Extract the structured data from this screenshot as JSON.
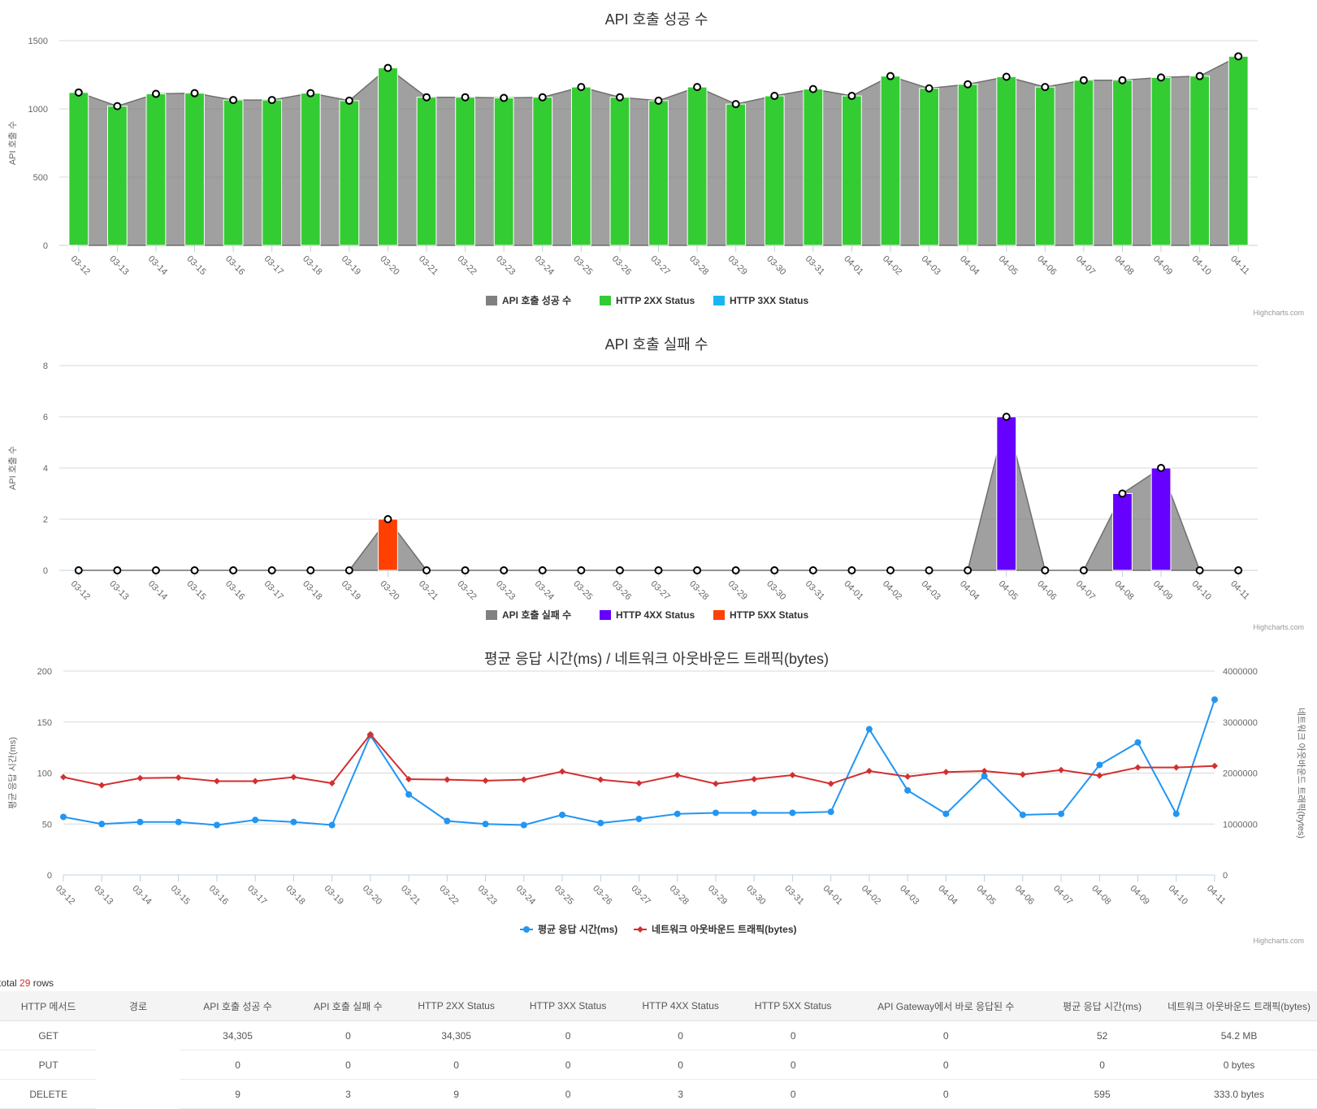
{
  "charts": [
    {
      "id": "success",
      "credit": "Highcharts.com",
      "chart_data": {
        "type": "bar",
        "title": "API 호출 성공 수",
        "ylabel": "API 호출 수",
        "ylim": [
          0,
          1500
        ],
        "yticks": [
          0,
          500,
          1000,
          1500
        ],
        "grid": true,
        "legend_position": "bottom-center",
        "categories": [
          "03-12",
          "03-13",
          "03-14",
          "03-15",
          "03-16",
          "03-17",
          "03-18",
          "03-19",
          "03-20",
          "03-21",
          "03-22",
          "03-23",
          "03-24",
          "03-25",
          "03-26",
          "03-27",
          "03-28",
          "03-29",
          "03-30",
          "03-31",
          "04-01",
          "04-02",
          "04-03",
          "04-04",
          "04-05",
          "04-06",
          "04-07",
          "04-08",
          "04-09",
          "04-10",
          "04-11"
        ],
        "series": [
          {
            "name": "API 호출 성공 수",
            "kind": "area",
            "color": "#808080",
            "values": [
              1120,
              1020,
              1110,
              1115,
              1065,
              1065,
              1115,
              1060,
              1300,
              1085,
              1085,
              1080,
              1085,
              1160,
              1085,
              1060,
              1160,
              1035,
              1095,
              1145,
              1095,
              1240,
              1150,
              1180,
              1235,
              1160,
              1210,
              1210,
              1230,
              1240,
              1385
            ]
          },
          {
            "name": "HTTP 2XX Status",
            "kind": "bar",
            "color": "#33cc33",
            "values": [
              1120,
              1020,
              1110,
              1115,
              1065,
              1065,
              1115,
              1060,
              1300,
              1085,
              1085,
              1080,
              1085,
              1160,
              1085,
              1060,
              1160,
              1035,
              1095,
              1145,
              1095,
              1240,
              1150,
              1180,
              1235,
              1160,
              1210,
              1210,
              1230,
              1240,
              1385
            ]
          },
          {
            "name": "HTTP 3XX Status",
            "kind": "bar",
            "color": "#1ab5f0",
            "values": [
              0,
              0,
              0,
              0,
              0,
              0,
              0,
              0,
              0,
              0,
              0,
              0,
              0,
              0,
              0,
              0,
              0,
              0,
              0,
              0,
              0,
              0,
              0,
              0,
              0,
              0,
              0,
              0,
              0,
              0,
              0
            ]
          }
        ]
      }
    },
    {
      "id": "failure",
      "credit": "Highcharts.com",
      "chart_data": {
        "type": "bar",
        "title": "API 호출 실패 수",
        "ylabel": "API 호출 수",
        "ylim": [
          0,
          8
        ],
        "yticks": [
          0,
          2,
          4,
          6,
          8
        ],
        "grid": true,
        "legend_position": "bottom-center",
        "categories": [
          "03-12",
          "03-13",
          "03-14",
          "03-15",
          "03-16",
          "03-17",
          "03-18",
          "03-19",
          "03-20",
          "03-21",
          "03-22",
          "03-23",
          "03-24",
          "03-25",
          "03-26",
          "03-27",
          "03-28",
          "03-29",
          "03-30",
          "03-31",
          "04-01",
          "04-02",
          "04-03",
          "04-04",
          "04-05",
          "04-06",
          "04-07",
          "04-08",
          "04-09",
          "04-10",
          "04-11"
        ],
        "series": [
          {
            "name": "API 호출 실패 수",
            "kind": "area",
            "color": "#808080",
            "values": [
              0,
              0,
              0,
              0,
              0,
              0,
              0,
              0,
              2,
              0,
              0,
              0,
              0,
              0,
              0,
              0,
              0,
              0,
              0,
              0,
              0,
              0,
              0,
              0,
              6,
              0,
              0,
              3,
              4,
              0,
              0
            ]
          },
          {
            "name": "HTTP 4XX Status",
            "kind": "bar",
            "color": "#6600ff",
            "values": [
              0,
              0,
              0,
              0,
              0,
              0,
              0,
              0,
              0,
              0,
              0,
              0,
              0,
              0,
              0,
              0,
              0,
              0,
              0,
              0,
              0,
              0,
              0,
              0,
              6,
              0,
              0,
              3,
              4,
              0,
              0
            ]
          },
          {
            "name": "HTTP 5XX Status",
            "kind": "bar",
            "color": "#ff4000",
            "values": [
              0,
              0,
              0,
              0,
              0,
              0,
              0,
              0,
              2,
              0,
              0,
              0,
              0,
              0,
              0,
              0,
              0,
              0,
              0,
              0,
              0,
              0,
              0,
              0,
              0,
              0,
              0,
              0,
              0,
              0,
              0
            ]
          }
        ]
      }
    },
    {
      "id": "latency",
      "credit": "Highcharts.com",
      "chart_data": {
        "type": "line",
        "title": "평균 응답 시간(ms) / 네트워크 아웃바운드 트래픽(bytes)",
        "ylabel": "평균 응답 시간(ms)",
        "ylim": [
          0,
          200
        ],
        "yticks": [
          0,
          50,
          100,
          150,
          200
        ],
        "y2label": "네트워크 아웃바운드 트래픽(bytes)",
        "y2lim": [
          0,
          4000000
        ],
        "y2ticks": [
          0,
          1000000,
          2000000,
          3000000,
          4000000
        ],
        "grid": true,
        "legend_position": "bottom-center",
        "categories": [
          "03-12",
          "03-13",
          "03-14",
          "03-15",
          "03-16",
          "03-17",
          "03-18",
          "03-19",
          "03-20",
          "03-21",
          "03-22",
          "03-23",
          "03-24",
          "03-25",
          "03-26",
          "03-27",
          "03-28",
          "03-29",
          "03-30",
          "03-31",
          "04-01",
          "04-02",
          "04-03",
          "04-04",
          "04-05",
          "04-06",
          "04-07",
          "04-08",
          "04-09",
          "04-10",
          "04-11"
        ],
        "series": [
          {
            "name": "평균 응답 시간(ms)",
            "axis": "left",
            "color": "#2196f3",
            "marker": "circle",
            "values": [
              57,
              50,
              52,
              52,
              49,
              54,
              52,
              49,
              137,
              79,
              53,
              50,
              49,
              59,
              51,
              55,
              60,
              61,
              61,
              61,
              62,
              143,
              83,
              60,
              97,
              59,
              60,
              108,
              130,
              60,
              172
            ]
          },
          {
            "name": "네트워크 아웃바운드 트래픽(bytes)",
            "axis": "right",
            "color": "#d32f2f",
            "marker": "diamond",
            "values": [
              1920000,
              1760000,
              1900000,
              1910000,
              1840000,
              1840000,
              1920000,
              1800000,
              2760000,
              1880000,
              1870000,
              1850000,
              1870000,
              2030000,
              1870000,
              1800000,
              1960000,
              1790000,
              1880000,
              1960000,
              1790000,
              2040000,
              1930000,
              2020000,
              2040000,
              1970000,
              2060000,
              1950000,
              2110000,
              2110000,
              2140000
            ]
          }
        ]
      }
    }
  ],
  "table": {
    "total_prefix": "total ",
    "total_count": "29",
    "total_suffix": " rows",
    "headers": [
      "HTTP 메서드",
      "경로",
      "API 호출 성공 수",
      "API 호출 실패 수",
      "HTTP 2XX Status",
      "HTTP 3XX Status",
      "HTTP 4XX Status",
      "HTTP 5XX Status",
      "API Gateway에서 바로 응답된 수",
      "평균 응답 시간(ms)",
      "네트워크 아웃바운드 트래픽(bytes)"
    ],
    "rows": [
      [
        "GET",
        "",
        "34,305",
        "0",
        "34,305",
        "0",
        "0",
        "0",
        "0",
        "52",
        "54.2 MB"
      ],
      [
        "PUT",
        "",
        "0",
        "0",
        "0",
        "0",
        "0",
        "0",
        "0",
        "0",
        "0 bytes"
      ],
      [
        "DELETE",
        "",
        "9",
        "3",
        "9",
        "0",
        "3",
        "0",
        "0",
        "595",
        "333.0 bytes"
      ]
    ]
  }
}
